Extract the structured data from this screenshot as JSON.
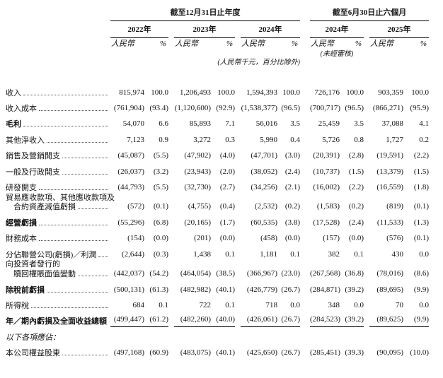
{
  "table": {
    "period_headers": [
      {
        "label": "截至12月31日止年度"
      },
      {
        "label": "截至6月30日止六個月"
      }
    ],
    "year_headers": [
      "2022年",
      "2023年",
      "2024年",
      "2024年",
      "2025年"
    ],
    "unit_currency": "人民幣",
    "unit_percent": "%",
    "unaudited_note": "(未經審核)",
    "units_note": "(人民幣千元，百分比除外)",
    "rows": [
      {
        "label": "收入",
        "leader": true,
        "values": [
          "815,974",
          "100.0",
          "1,206,493",
          "100.0",
          "1,594,393",
          "100.0",
          "726,176",
          "100.0",
          "903,359",
          "100.0"
        ]
      },
      {
        "label": "收入成本",
        "leader": true,
        "values": [
          "(761,904)",
          "(93.4)",
          "(1,120,600)",
          "(92.9)",
          "(1,538,377)",
          "(96.5)",
          "(700,717)",
          "(96.5)",
          "(866,271)",
          "(95.9)"
        ]
      },
      {
        "label": "毛利",
        "bold": true,
        "leader": true,
        "values": [
          "54,070",
          "6.6",
          "85,893",
          "7.1",
          "56,016",
          "3.5",
          "25,459",
          "3.5",
          "37,088",
          "4.1"
        ]
      },
      {
        "label": "其他淨收入",
        "leader": true,
        "values": [
          "7,123",
          "0.9",
          "3,272",
          "0.3",
          "5,990",
          "0.4",
          "5,726",
          "0.8",
          "1,727",
          "0.2"
        ]
      },
      {
        "label": "銷售及營銷開支",
        "leader": true,
        "values": [
          "(45,087)",
          "(5.5)",
          "(47,902)",
          "(4.0)",
          "(47,701)",
          "(3.0)",
          "(20,391)",
          "(2.8)",
          "(19,591)",
          "(2.2)"
        ]
      },
      {
        "label": "一般及行政開支",
        "leader": true,
        "values": [
          "(26,037)",
          "(3.2)",
          "(23,943)",
          "(2.0)",
          "(38,052)",
          "(2.4)",
          "(10,737)",
          "(1.5)",
          "(13,379)",
          "(1.5)"
        ]
      },
      {
        "label": "研發開支",
        "leader": true,
        "values": [
          "(44,793)",
          "(5.5)",
          "(32,730)",
          "(2.7)",
          "(34,256)",
          "(2.1)",
          "(16,002)",
          "(2.2)",
          "(16,559)",
          "(1.8)"
        ]
      },
      {
        "label": "貿易應收款項、其他應收款項及",
        "label2": "合約資產減值虧損",
        "leader": true,
        "values": [
          "(572)",
          "(0.1)",
          "(4,755)",
          "(0.4)",
          "(2,532)",
          "(0.2)",
          "(1,583)",
          "(0.2)",
          "(819)",
          "(0.1)"
        ]
      },
      {
        "label": "經營虧損",
        "bold": true,
        "leader": true,
        "values": [
          "(55,296)",
          "(6.8)",
          "(20,165)",
          "(1.7)",
          "(60,535)",
          "(3.8)",
          "(17,528)",
          "(2.4)",
          "(11,533)",
          "(1.3)"
        ]
      },
      {
        "label": "財務成本",
        "leader": true,
        "values": [
          "(154)",
          "(0.0)",
          "(201)",
          "(0.0)",
          "(458)",
          "(0.0)",
          "(157)",
          "(0.0)",
          "(576)",
          "(0.1)"
        ]
      },
      {
        "label": "分佔聯營公司(虧損)／利潤",
        "leader": true,
        "values": [
          "(2,644)",
          "(0.3)",
          "1,438",
          "0.1",
          "1,181",
          "0.1",
          "382",
          "0.1",
          "430",
          "0.0"
        ]
      },
      {
        "label": "向投資者發行的",
        "label2": "贖回權賬面值變動",
        "leader": true,
        "values": [
          "(442,037)",
          "(54.2)",
          "(464,054)",
          "(38.5)",
          "(366,967)",
          "(23.0)",
          "(267,568)",
          "(36.8)",
          "(78,016)",
          "(8.6)"
        ]
      },
      {
        "label": "除稅前虧損",
        "bold": true,
        "leader": true,
        "values": [
          "(500,131)",
          "(61.3)",
          "(482,982)",
          "(40.1)",
          "(426,779)",
          "(26.7)",
          "(284,871)",
          "(39.2)",
          "(89,695)",
          "(9.9)"
        ]
      },
      {
        "label": "所得稅",
        "leader": true,
        "values": [
          "684",
          "0.1",
          "722",
          "0.1",
          "718",
          "0.0",
          "348",
          "0.0",
          "70",
          "0.0"
        ]
      },
      {
        "label": "年／期內虧損及全面收益總額",
        "bold": true,
        "underline": true,
        "values": [
          "(499,447)",
          "(61.2)",
          "(482,260)",
          "(40.0)",
          "(426,061)",
          "(26.7)",
          "(284,523)",
          "(39.2)",
          "(89,625)",
          "(9.9)"
        ]
      },
      {
        "label": "以下各項應佔：",
        "italic": true,
        "values": []
      },
      {
        "label": "本公司權益股東",
        "leader": true,
        "values": [
          "(497,168)",
          "(60.9)",
          "(483,075)",
          "(40.1)",
          "(425,650)",
          "(26.7)",
          "(285,451)",
          "(39.3)",
          "(90,095)",
          "(10.0)"
        ]
      }
    ]
  }
}
